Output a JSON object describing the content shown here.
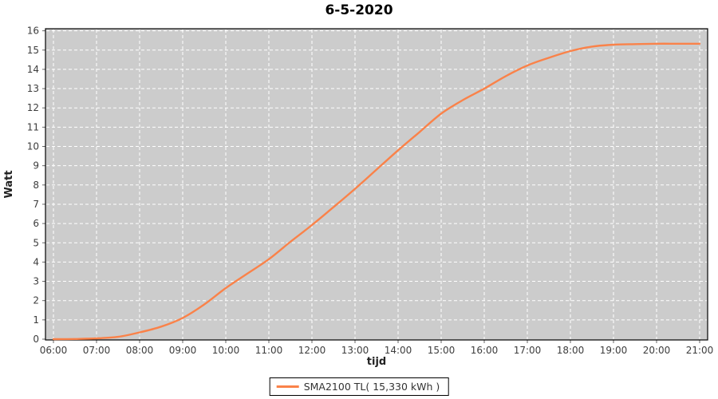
{
  "title": "6-5-2020",
  "colors": {
    "plot_bg": "#cccccc",
    "grid": "#ffffff",
    "border": "#000000",
    "tick_mark": "#666666",
    "tick_text": "#3d3d3d",
    "series": "#fa8249"
  },
  "legend": {
    "label": "SMA2100 TL( 15,330 kWh )"
  },
  "chart_data": {
    "type": "line",
    "title": "6-5-2020",
    "xlabel": "tijd",
    "ylabel": "Watt",
    "grid": true,
    "legend_position": "bottom",
    "ylim": [
      0,
      16
    ],
    "y_ticks": [
      0,
      1,
      2,
      3,
      4,
      5,
      6,
      7,
      8,
      9,
      10,
      11,
      12,
      13,
      14,
      15,
      16
    ],
    "x_ticks": [
      "06:00",
      "07:00",
      "08:00",
      "09:00",
      "10:00",
      "11:00",
      "12:00",
      "13:00",
      "14:00",
      "15:00",
      "16:00",
      "17:00",
      "18:00",
      "19:00",
      "20:00",
      "21:00"
    ],
    "series": [
      {
        "name": "SMA2100 TL( 15,330 kWh )",
        "color": "#fa8249",
        "x": [
          "06:00",
          "06:30",
          "07:00",
          "07:30",
          "08:00",
          "08:30",
          "09:00",
          "09:30",
          "10:00",
          "10:30",
          "11:00",
          "11:30",
          "12:00",
          "12:30",
          "13:00",
          "13:30",
          "14:00",
          "14:30",
          "15:00",
          "15:30",
          "16:00",
          "16:30",
          "17:00",
          "17:30",
          "18:00",
          "18:30",
          "19:00",
          "19:30",
          "20:00",
          "20:30",
          "21:00"
        ],
        "values": [
          0.0,
          0.01,
          0.04,
          0.12,
          0.35,
          0.65,
          1.1,
          1.8,
          2.65,
          3.4,
          4.15,
          5.05,
          5.92,
          6.85,
          7.8,
          8.8,
          9.8,
          10.75,
          11.7,
          12.4,
          13.0,
          13.65,
          14.2,
          14.6,
          14.95,
          15.18,
          15.28,
          15.31,
          15.33,
          15.33,
          15.33
        ]
      }
    ]
  }
}
